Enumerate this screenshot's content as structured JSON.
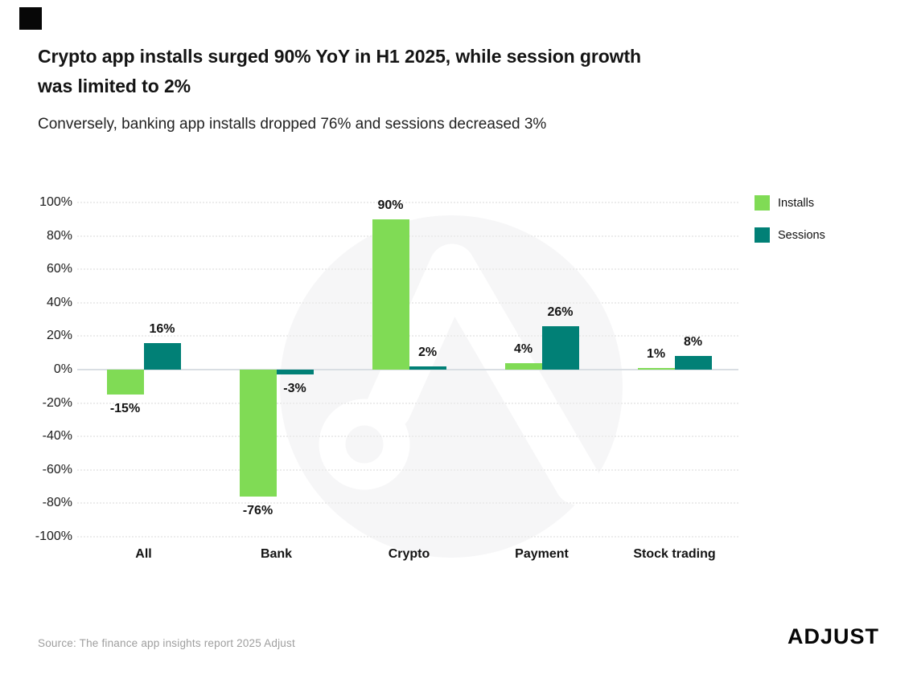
{
  "header": {
    "title_lines": [
      "Crypto app installs surged 90% YoY in H1 2025, while session growth",
      "was limited to 2%"
    ],
    "subtitle": "Conversely, banking app installs dropped 76% and sessions decreased 3%"
  },
  "chart_data": {
    "type": "bar",
    "title": "Crypto app installs surged 90% YoY in H1 2025, while session growth was limited to 2%",
    "subtitle": "Conversely, banking app installs dropped 76% and sessions decreased 3%",
    "categories": [
      "All",
      "Bank",
      "Crypto",
      "Payment",
      "Stock trading"
    ],
    "series": [
      {
        "name": "Installs",
        "color": "#80DB55",
        "values": [
          -15,
          -76,
          90,
          4,
          1
        ],
        "labels": [
          "-15%",
          "-76%",
          "90%",
          "4%",
          "1%"
        ]
      },
      {
        "name": "Sessions",
        "color": "#018076",
        "values": [
          16,
          -3,
          2,
          26,
          8
        ],
        "labels": [
          "16%",
          "-3%",
          "2%",
          "26%",
          "8%"
        ]
      }
    ],
    "value_suffix": "%",
    "ylim": [
      -100,
      100
    ],
    "y_ticks": [
      {
        "value": 100,
        "label": "100%"
      },
      {
        "value": 80,
        "label": "80%"
      },
      {
        "value": 60,
        "label": "60%"
      },
      {
        "value": 40,
        "label": "40%"
      },
      {
        "value": 20,
        "label": "20%"
      },
      {
        "value": 0,
        "label": "0%"
      },
      {
        "value": -20,
        "label": "-20%"
      },
      {
        "value": -40,
        "label": "-40%"
      },
      {
        "value": -60,
        "label": "-60%"
      },
      {
        "value": -80,
        "label": "-80%"
      },
      {
        "value": -100,
        "label": "-100%"
      }
    ],
    "grid": "horizontal-dotted",
    "legend_position": "top-right",
    "data_labels": true
  },
  "watermark": {
    "circle_color": "#F6F6F7"
  },
  "footer": {
    "source": "Source: The finance app insights report 2025 Adjust",
    "logo_text": "ADJUST"
  }
}
